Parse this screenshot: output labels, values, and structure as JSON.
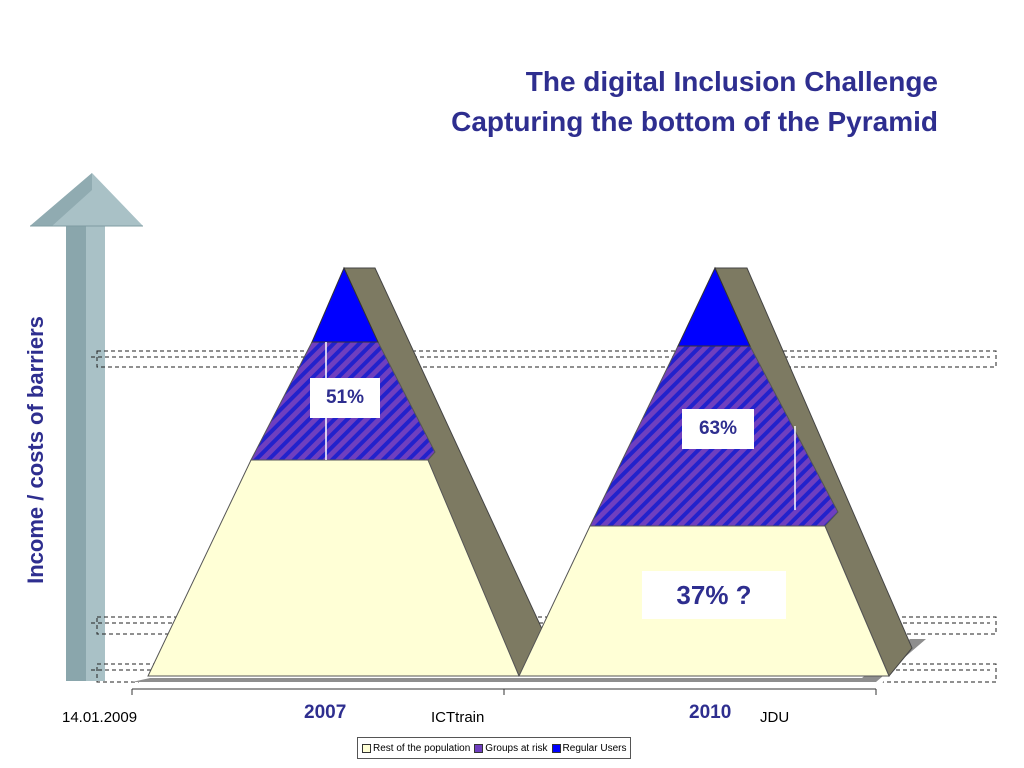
{
  "slide": {
    "title_line1": "The digital Inclusion Challenge",
    "title_line2": "Capturing the bottom of the Pyramid",
    "footer_date": "14.01.2009",
    "footer_center": "ICTtrain",
    "footer_right": "JDU"
  },
  "chart_data": {
    "type": "pyramid",
    "ylabel": "Income / costs of barriers",
    "categories": [
      "2007",
      "2010"
    ],
    "series": [
      {
        "name": "Rest of the population",
        "color": "#ffffd6"
      },
      {
        "name": "Groups at risk",
        "color": "#6f3fbf"
      },
      {
        "name": "Regular Users",
        "color": "#0000ff"
      }
    ],
    "pyramids": [
      {
        "year": "2007",
        "levels": {
          "Rest of the population": 0.48,
          "Groups at risk": 0.28,
          "Regular Users": 0.17
        },
        "label": "51%"
      },
      {
        "year": "2010",
        "levels": {
          "Rest of the population": 0.32,
          "Groups at risk": 0.42,
          "Regular Users": 0.17
        },
        "label": "63%",
        "extra_label": "37% ?"
      }
    ],
    "grid": false,
    "legend_position": "bottom"
  }
}
